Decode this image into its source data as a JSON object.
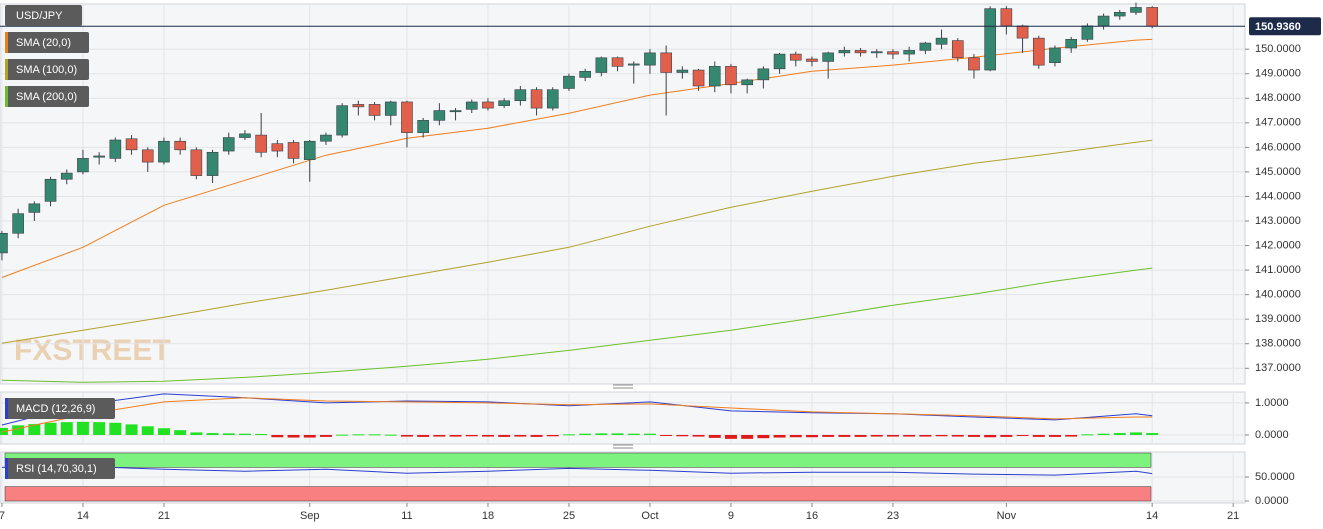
{
  "chart_data": [
    {
      "type": "candlestick",
      "title": "USD/JPY",
      "watermark": "FXSTREET",
      "up_color": "#36876f",
      "down_color": "#e0604c",
      "grid": true,
      "open": [
        141.7,
        142.5,
        143.35,
        143.8,
        144.7,
        145.0,
        145.6,
        145.55,
        146.35,
        145.9,
        145.4,
        146.25,
        145.9,
        144.85,
        145.85,
        146.4,
        146.5,
        146.15,
        146.2,
        145.5,
        146.25,
        146.5,
        147.75,
        147.75,
        147.3,
        147.85,
        146.6,
        147.1,
        147.45,
        147.55,
        147.85,
        147.7,
        147.9,
        148.35,
        147.6,
        148.4,
        148.85,
        149.05,
        149.65,
        149.35,
        149.35,
        149.85,
        149.05,
        149.15,
        148.5,
        149.3,
        148.55,
        148.75,
        149.2,
        149.8,
        149.6,
        149.5,
        149.85,
        149.95,
        149.85,
        149.9,
        149.8,
        149.95,
        150.2,
        150.35,
        149.65,
        149.15,
        151.65,
        150.95,
        150.45,
        149.45,
        150.05,
        150.4,
        150.95,
        151.35,
        151.5,
        151.7
      ],
      "high": [
        142.6,
        143.5,
        143.8,
        144.8,
        145.1,
        145.9,
        145.8,
        146.4,
        146.5,
        146.0,
        146.4,
        146.4,
        146.0,
        145.9,
        146.6,
        146.7,
        147.4,
        146.3,
        146.3,
        146.3,
        146.6,
        147.8,
        147.9,
        147.85,
        147.9,
        147.9,
        147.2,
        147.8,
        147.6,
        147.95,
        148.0,
        148.0,
        148.5,
        148.45,
        148.45,
        149.0,
        149.2,
        149.7,
        149.7,
        149.5,
        150.0,
        150.15,
        149.3,
        149.2,
        149.5,
        149.4,
        148.8,
        149.3,
        149.85,
        149.9,
        149.7,
        149.9,
        150.1,
        150.05,
        150.0,
        150.0,
        150.1,
        150.3,
        150.8,
        150.45,
        149.8,
        151.75,
        151.75,
        151.0,
        150.55,
        150.15,
        150.5,
        151.05,
        151.45,
        151.6,
        151.9,
        151.75
      ],
      "low": [
        141.4,
        142.3,
        143.0,
        143.6,
        144.5,
        144.9,
        145.3,
        145.4,
        145.7,
        145.0,
        145.3,
        145.7,
        144.7,
        144.55,
        145.7,
        146.3,
        145.6,
        145.6,
        145.35,
        144.6,
        146.1,
        146.4,
        147.3,
        147.1,
        146.9,
        146.0,
        146.4,
        146.9,
        147.1,
        147.4,
        147.5,
        147.6,
        147.7,
        147.3,
        147.5,
        148.3,
        148.7,
        148.9,
        149.1,
        148.6,
        149.0,
        147.3,
        148.8,
        148.3,
        148.25,
        148.2,
        148.2,
        148.4,
        149.0,
        149.3,
        149.3,
        148.8,
        149.7,
        149.7,
        149.65,
        149.6,
        149.5,
        149.8,
        150.0,
        149.5,
        148.8,
        149.1,
        150.6,
        149.85,
        149.2,
        149.3,
        149.85,
        150.3,
        150.8,
        151.2,
        151.4,
        150.85
      ],
      "close": [
        142.5,
        143.3,
        143.7,
        144.7,
        144.95,
        145.55,
        145.65,
        146.3,
        145.9,
        145.4,
        146.25,
        145.9,
        144.85,
        145.8,
        146.4,
        146.55,
        145.8,
        145.85,
        145.55,
        146.25,
        146.5,
        147.7,
        147.65,
        147.3,
        147.85,
        146.6,
        147.1,
        147.5,
        147.5,
        147.85,
        147.6,
        147.9,
        148.35,
        147.6,
        148.35,
        148.9,
        149.1,
        149.65,
        149.3,
        149.4,
        149.85,
        149.05,
        149.15,
        148.5,
        149.3,
        148.55,
        148.75,
        149.2,
        149.8,
        149.55,
        149.5,
        149.85,
        149.95,
        149.85,
        149.9,
        149.8,
        149.95,
        150.25,
        150.45,
        149.65,
        149.15,
        151.65,
        150.95,
        150.45,
        149.35,
        150.05,
        150.4,
        150.95,
        151.35,
        151.5,
        151.7,
        150.936
      ],
      "last_price": {
        "value": 150.936,
        "label": "150.9360"
      },
      "lines": [
        {
          "name": "SMA (20,0)",
          "color": "#f07d1c",
          "x": [
            0,
            5,
            10,
            15,
            20,
            25,
            30,
            35,
            40,
            45,
            50,
            55,
            60,
            65,
            70,
            71
          ],
          "values": [
            140.7,
            141.93,
            143.64,
            144.66,
            145.68,
            146.37,
            146.78,
            147.39,
            148.13,
            148.6,
            149.1,
            149.35,
            149.67,
            150.04,
            150.37,
            150.4
          ]
        },
        {
          "name": "SMA (100,0)",
          "color": "#b2a12a",
          "x": [
            0,
            5,
            10,
            15,
            20,
            25,
            30,
            35,
            40,
            45,
            50,
            55,
            60,
            65,
            70,
            71
          ],
          "values": [
            138.02,
            138.55,
            139.08,
            139.65,
            140.18,
            140.75,
            141.32,
            141.93,
            142.79,
            143.56,
            144.21,
            144.82,
            145.35,
            145.76,
            146.21,
            146.29
          ]
        },
        {
          "name": "SMA (200,0)",
          "color": "#6cbf2c",
          "x": [
            0,
            5,
            10,
            15,
            20,
            25,
            30,
            35,
            40,
            45,
            50,
            55,
            60,
            65,
            70,
            71
          ],
          "values": [
            136.51,
            136.43,
            136.47,
            136.63,
            136.84,
            137.08,
            137.37,
            137.73,
            138.14,
            138.55,
            139.04,
            139.57,
            140.02,
            140.55,
            141.0,
            141.08
          ]
        }
      ],
      "xlim": [
        -0.12,
        76.73
      ],
      "xticks": [
        {
          "value": 0,
          "label": "7"
        },
        {
          "value": 5,
          "label": "14"
        },
        {
          "value": 10,
          "label": "21"
        },
        {
          "value": 19,
          "label": "Sep"
        },
        {
          "value": 25,
          "label": "11"
        },
        {
          "value": 30,
          "label": "18"
        },
        {
          "value": 35,
          "label": "25"
        },
        {
          "value": 40,
          "label": "Oct"
        },
        {
          "value": 45,
          "label": "9"
        },
        {
          "value": 50,
          "label": "16"
        },
        {
          "value": 55,
          "label": "23"
        },
        {
          "value": 62,
          "label": "Nov"
        },
        {
          "value": 71,
          "label": "14"
        },
        {
          "value": 76,
          "label": "21"
        }
      ],
      "ylim": [
        136.4,
        151.8
      ],
      "yticks": [
        {
          "value": 137,
          "label": "137.0000"
        },
        {
          "value": 138,
          "label": "138.0000"
        },
        {
          "value": 139,
          "label": "139.0000"
        },
        {
          "value": 140,
          "label": "140.0000"
        },
        {
          "value": 141,
          "label": "141.0000"
        },
        {
          "value": 142,
          "label": "142.0000"
        },
        {
          "value": 143,
          "label": "143.0000"
        },
        {
          "value": 144,
          "label": "144.0000"
        },
        {
          "value": 145,
          "label": "145.0000"
        },
        {
          "value": 146,
          "label": "146.0000"
        },
        {
          "value": 147,
          "label": "147.0000"
        },
        {
          "value": 148,
          "label": "148.0000"
        },
        {
          "value": 149,
          "label": "149.0000"
        },
        {
          "value": 150,
          "label": "150.0000"
        }
      ]
    },
    {
      "type": "macd",
      "title": "MACD (12,26,9)",
      "up_color": "#22e022",
      "down_color": "#e01a1a",
      "histogram": [
        0.22,
        0.3,
        0.34,
        0.38,
        0.4,
        0.41,
        0.4,
        0.38,
        0.33,
        0.27,
        0.21,
        0.15,
        0.08,
        0.06,
        0.05,
        0.04,
        0.03,
        -0.07,
        -0.08,
        -0.08,
        -0.06,
        0.01,
        0.02,
        0.02,
        0.01,
        -0.05,
        -0.06,
        -0.05,
        -0.05,
        -0.04,
        -0.05,
        -0.06,
        -0.05,
        -0.06,
        -0.04,
        0.02,
        0.04,
        0.05,
        0.05,
        0.04,
        0.04,
        -0.01,
        -0.04,
        -0.05,
        -0.09,
        -0.12,
        -0.12,
        -0.1,
        -0.08,
        -0.07,
        -0.07,
        -0.06,
        -0.06,
        -0.06,
        -0.05,
        -0.05,
        -0.05,
        -0.05,
        -0.04,
        -0.05,
        -0.06,
        -0.07,
        -0.06,
        -0.01,
        -0.06,
        -0.06,
        -0.05,
        0.02,
        0.04,
        0.06,
        0.08,
        0.06
      ],
      "lines": [
        {
          "color": "#2a3fd0",
          "x": [
            0,
            5,
            10,
            15,
            20,
            25,
            30,
            35,
            40,
            45,
            50,
            55,
            60,
            65,
            70,
            71
          ],
          "values": [
            0.31,
            0.94,
            1.28,
            1.16,
            1.0,
            1.06,
            1.03,
            0.91,
            1.03,
            0.75,
            0.69,
            0.66,
            0.56,
            0.47,
            0.66,
            0.6
          ]
        },
        {
          "color": "#f07d1c",
          "x": [
            0,
            5,
            10,
            15,
            20,
            25,
            30,
            35,
            40,
            45,
            50,
            55,
            60,
            65,
            70,
            71
          ],
          "values": [
            0.09,
            0.63,
            1.03,
            1.16,
            1.06,
            1.03,
            1.0,
            0.94,
            0.97,
            0.84,
            0.72,
            0.66,
            0.6,
            0.5,
            0.56,
            0.56
          ]
        }
      ],
      "ylim": [
        -0.25,
        1.34
      ],
      "yticks": [
        {
          "value": 0,
          "label": "0.0000"
        },
        {
          "value": 1,
          "label": "1.0000"
        }
      ]
    },
    {
      "type": "rsi",
      "title": "RSI (14,70,30,1)",
      "upper": 70,
      "lower": 30,
      "upper_color": "#7ef27e",
      "lower_color": "#f88080",
      "lines": [
        {
          "color": "#2a3fd0",
          "x": [
            0,
            5,
            10,
            15,
            20,
            25,
            30,
            35,
            40,
            45,
            50,
            55,
            60,
            65,
            70,
            71
          ],
          "values": [
            70,
            72,
            66,
            62,
            66,
            58,
            62,
            68,
            64,
            58,
            60,
            60,
            56,
            54,
            62,
            57
          ]
        }
      ],
      "ylim": [
        0,
        100
      ],
      "yticks": [
        {
          "value": 0,
          "label": "0.0000"
        },
        {
          "value": 50,
          "label": "50.0000"
        }
      ]
    }
  ]
}
